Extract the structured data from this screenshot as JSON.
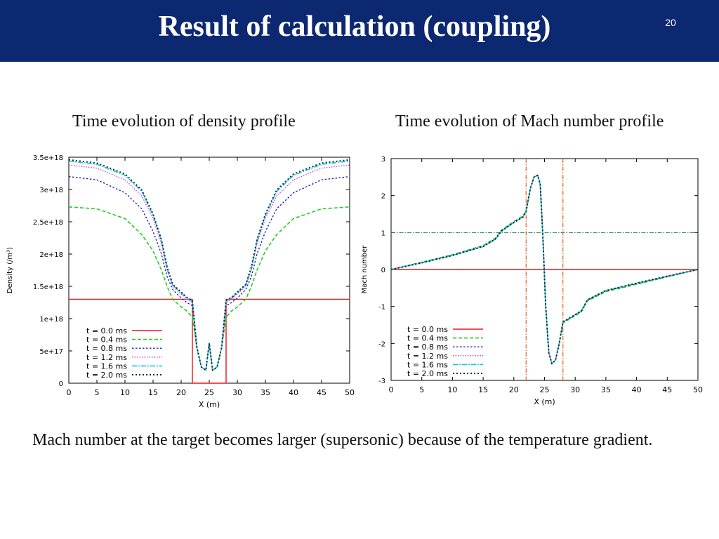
{
  "slide": {
    "title": "Result of calculation (coupling)",
    "number": "20",
    "caption_left": "Time evolution of density profile",
    "caption_right": "Time evolution of Mach number profile",
    "footnote": "Mach number at the target becomes larger (supersonic) because of the temperature gradient."
  },
  "colors": {
    "header_bg": "#0b2870",
    "t0": "#e8161b",
    "t04": "#22cc22",
    "t08": "#2020c0",
    "t12": "#e030e0",
    "t16": "#10c8e0",
    "t20": "#103030",
    "ref_orange": "#e86010",
    "ref_teal": "#208080"
  },
  "chart_data": [
    {
      "type": "line",
      "xlabel": "X (m)",
      "ylabel": "Density (/m³)",
      "xlim": [
        0,
        50
      ],
      "ylim": [
        0,
        3.5e+18
      ],
      "x_ticks": [
        "0",
        "5",
        "10",
        "15",
        "20",
        "25",
        "30",
        "35",
        "40",
        "45",
        "50"
      ],
      "y_ticks": [
        "0",
        "5e+17",
        "1e+18",
        "1.5e+18",
        "2e+18",
        "2.5e+18",
        "3e+18",
        "3.5e+18"
      ],
      "legend_position": "bottom-left",
      "grid": false,
      "series": [
        {
          "name": "t = 0.0 ms",
          "x": [
            0,
            22,
            22,
            28,
            28,
            50
          ],
          "y": [
            1.3e+18,
            1.3e+18,
            0,
            0,
            1.3e+18,
            1.3e+18
          ]
        },
        {
          "name": "t = 0.4 ms",
          "x": [
            0,
            5,
            10,
            13,
            15,
            16.5,
            17.5,
            18.5,
            20,
            21,
            22,
            22.8,
            23.6,
            24.4,
            25,
            25.6,
            26.4,
            27.2,
            28,
            29,
            30,
            31.5,
            32.5,
            33.5,
            35,
            37,
            40,
            45,
            50
          ],
          "y": [
            2.73e+18,
            2.7e+18,
            2.55e+18,
            2.3e+18,
            2.05e+18,
            1.75e+18,
            1.5e+18,
            1.3e+18,
            1.18e+18,
            1.12e+18,
            1.02e+18,
            5.5e+17,
            2.5e+17,
            2e+17,
            6.2e+17,
            2e+17,
            2.5e+17,
            5.5e+17,
            1.02e+18,
            1.12e+18,
            1.18e+18,
            1.3e+18,
            1.5e+18,
            1.75e+18,
            2.05e+18,
            2.3e+18,
            2.55e+18,
            2.7e+18,
            2.73e+18
          ]
        },
        {
          "name": "t = 0.8 ms",
          "x": [
            0,
            5,
            10,
            13,
            15,
            16.5,
            17.5,
            18.5,
            20,
            21,
            22,
            22.8,
            23.6,
            24.4,
            25,
            25.6,
            26.4,
            27.2,
            28,
            29,
            30,
            31.5,
            32.5,
            33.5,
            35,
            37,
            40,
            45,
            50
          ],
          "y": [
            3.2e+18,
            3.15e+18,
            2.95e+18,
            2.7e+18,
            2.35e+18,
            2e+18,
            1.65e+18,
            1.45e+18,
            1.32e+18,
            1.25e+18,
            1.2e+18,
            5.5e+17,
            2.5e+17,
            2e+17,
            6.2e+17,
            2e+17,
            2.5e+17,
            5.5e+17,
            1.2e+18,
            1.25e+18,
            1.32e+18,
            1.45e+18,
            1.65e+18,
            2e+18,
            2.35e+18,
            2.7e+18,
            2.95e+18,
            3.15e+18,
            3.2e+18
          ]
        },
        {
          "name": "t = 1.2 ms",
          "x": [
            0,
            5,
            10,
            13,
            15,
            16.5,
            17.5,
            18.5,
            20,
            21,
            22,
            22.8,
            23.6,
            24.4,
            25,
            25.6,
            26.4,
            27.2,
            28,
            29,
            30,
            31.5,
            32.5,
            33.5,
            35,
            37,
            40,
            45,
            50
          ],
          "y": [
            3.38e+18,
            3.33e+18,
            3.15e+18,
            2.9e+18,
            2.55e+18,
            2.15e+18,
            1.75e+18,
            1.5e+18,
            1.38e+18,
            1.3e+18,
            1.25e+18,
            5.5e+17,
            2.5e+17,
            2e+17,
            6.2e+17,
            2e+17,
            2.5e+17,
            5.5e+17,
            1.25e+18,
            1.3e+18,
            1.38e+18,
            1.5e+18,
            1.75e+18,
            2.15e+18,
            2.55e+18,
            2.9e+18,
            3.15e+18,
            3.33e+18,
            3.38e+18
          ]
        },
        {
          "name": "t = 1.6 ms",
          "x": [
            0,
            5,
            10,
            13,
            15,
            16.5,
            17.5,
            18.5,
            20,
            21,
            22,
            22.8,
            23.6,
            24.4,
            25,
            25.6,
            26.4,
            27.2,
            28,
            29,
            30,
            31.5,
            32.5,
            33.5,
            35,
            37,
            40,
            45,
            50
          ],
          "y": [
            3.44e+18,
            3.39e+18,
            3.22e+18,
            2.97e+18,
            2.6e+18,
            2.2e+18,
            1.78e+18,
            1.52e+18,
            1.4e+18,
            1.32e+18,
            1.27e+18,
            5.5e+17,
            2.5e+17,
            2e+17,
            6.2e+17,
            2e+17,
            2.5e+17,
            5.5e+17,
            1.27e+18,
            1.32e+18,
            1.4e+18,
            1.52e+18,
            1.78e+18,
            2.2e+18,
            2.6e+18,
            2.97e+18,
            3.22e+18,
            3.39e+18,
            3.44e+18
          ]
        },
        {
          "name": "t = 2.0 ms",
          "x": [
            0,
            5,
            10,
            13,
            15,
            16.5,
            17.5,
            18.5,
            20,
            21,
            22,
            22.8,
            23.6,
            24.4,
            25,
            25.6,
            26.4,
            27.2,
            28,
            29,
            30,
            31.5,
            32.5,
            33.5,
            35,
            37,
            40,
            45,
            50
          ],
          "y": [
            3.46e+18,
            3.41e+18,
            3.24e+18,
            2.99e+18,
            2.62e+18,
            2.22e+18,
            1.8e+18,
            1.53e+18,
            1.41e+18,
            1.33e+18,
            1.28e+18,
            5.5e+17,
            2.5e+17,
            2e+17,
            6.2e+17,
            2e+17,
            2.5e+17,
            5.5e+17,
            1.28e+18,
            1.33e+18,
            1.41e+18,
            1.53e+18,
            1.8e+18,
            2.22e+18,
            2.62e+18,
            2.99e+18,
            3.24e+18,
            3.41e+18,
            3.46e+18
          ]
        }
      ]
    },
    {
      "type": "line",
      "xlabel": "X (m)",
      "ylabel": "Mach number",
      "xlim": [
        0,
        50
      ],
      "ylim": [
        -3,
        3
      ],
      "x_ticks": [
        "0",
        "5",
        "10",
        "15",
        "20",
        "25",
        "30",
        "35",
        "40",
        "45",
        "50"
      ],
      "y_ticks": [
        "-3",
        "-2",
        "-1",
        "0",
        "1",
        "2",
        "3"
      ],
      "legend_position": "bottom-left",
      "grid": false,
      "reference_lines": [
        {
          "orientation": "vertical",
          "value": 22,
          "color": "ref_orange"
        },
        {
          "orientation": "vertical",
          "value": 28,
          "color": "ref_orange"
        },
        {
          "orientation": "horizontal",
          "value": 1,
          "color": "ref_teal"
        }
      ],
      "series": [
        {
          "name": "t = 0.0 ms",
          "x": [
            0,
            50
          ],
          "y": [
            0,
            0
          ]
        },
        {
          "name": "t = 0.4 ms",
          "x": [
            0,
            5,
            10,
            15,
            17,
            18,
            20,
            21.5,
            22,
            22.7,
            23.3,
            23.9,
            24.3,
            24.7,
            25.2,
            25.7,
            26.2,
            26.8,
            27.4,
            28,
            29,
            30,
            31,
            32,
            35,
            40,
            45,
            50
          ],
          "y": [
            0,
            0.2,
            0.4,
            0.65,
            0.85,
            1.07,
            1.3,
            1.45,
            1.6,
            2.2,
            2.5,
            2.55,
            2.3,
            1.0,
            -1.0,
            -2.25,
            -2.55,
            -2.45,
            -2.0,
            -1.45,
            -1.35,
            -1.25,
            -1.15,
            -0.85,
            -0.6,
            -0.4,
            -0.2,
            0
          ]
        },
        {
          "name": "t = 0.8 ms",
          "x": [
            0,
            5,
            10,
            15,
            17,
            18,
            20,
            21.5,
            22,
            22.7,
            23.3,
            23.9,
            24.3,
            24.7,
            25.2,
            25.7,
            26.2,
            26.8,
            27.4,
            28,
            29,
            30,
            31,
            32,
            35,
            40,
            45,
            50
          ],
          "y": [
            0,
            0.19,
            0.39,
            0.63,
            0.83,
            1.05,
            1.28,
            1.43,
            1.58,
            2.2,
            2.5,
            2.55,
            2.3,
            1.0,
            -1.0,
            -2.25,
            -2.55,
            -2.45,
            -2.0,
            -1.43,
            -1.33,
            -1.23,
            -1.13,
            -0.83,
            -0.58,
            -0.38,
            -0.19,
            0
          ]
        },
        {
          "name": "t = 1.2 ms",
          "x": [
            0,
            5,
            10,
            15,
            17,
            18,
            20,
            21.5,
            22,
            22.7,
            23.3,
            23.9,
            24.3,
            24.7,
            25.2,
            25.7,
            26.2,
            26.8,
            27.4,
            28,
            29,
            30,
            31,
            32,
            35,
            40,
            45,
            50
          ],
          "y": [
            0,
            0.18,
            0.38,
            0.62,
            0.82,
            1.04,
            1.27,
            1.42,
            1.57,
            2.2,
            2.5,
            2.55,
            2.3,
            1.0,
            -1.0,
            -2.25,
            -2.55,
            -2.45,
            -2.0,
            -1.42,
            -1.32,
            -1.22,
            -1.12,
            -0.82,
            -0.57,
            -0.37,
            -0.18,
            0
          ]
        },
        {
          "name": "t = 1.6 ms",
          "x": [
            0,
            5,
            10,
            15,
            17,
            18,
            20,
            21.5,
            22,
            22.7,
            23.3,
            23.9,
            24.3,
            24.7,
            25.2,
            25.7,
            26.2,
            26.8,
            27.4,
            28,
            29,
            30,
            31,
            32,
            35,
            40,
            45,
            50
          ],
          "y": [
            0,
            0.18,
            0.38,
            0.62,
            0.82,
            1.04,
            1.27,
            1.42,
            1.57,
            2.2,
            2.5,
            2.55,
            2.3,
            1.0,
            -1.0,
            -2.25,
            -2.55,
            -2.45,
            -2.0,
            -1.42,
            -1.32,
            -1.22,
            -1.12,
            -0.82,
            -0.57,
            -0.37,
            -0.18,
            0
          ]
        },
        {
          "name": "t = 2.0 ms",
          "x": [
            0,
            5,
            10,
            15,
            17,
            18,
            20,
            21.5,
            22,
            22.7,
            23.3,
            23.9,
            24.3,
            24.7,
            25.2,
            25.7,
            26.2,
            26.8,
            27.4,
            28,
            29,
            30,
            31,
            32,
            35,
            40,
            45,
            50
          ],
          "y": [
            0,
            0.18,
            0.38,
            0.62,
            0.82,
            1.04,
            1.27,
            1.42,
            1.57,
            2.2,
            2.5,
            2.55,
            2.3,
            1.0,
            -1.0,
            -2.25,
            -2.55,
            -2.45,
            -2.0,
            -1.42,
            -1.32,
            -1.22,
            -1.12,
            -0.82,
            -0.57,
            -0.37,
            -0.18,
            0
          ]
        }
      ]
    }
  ]
}
